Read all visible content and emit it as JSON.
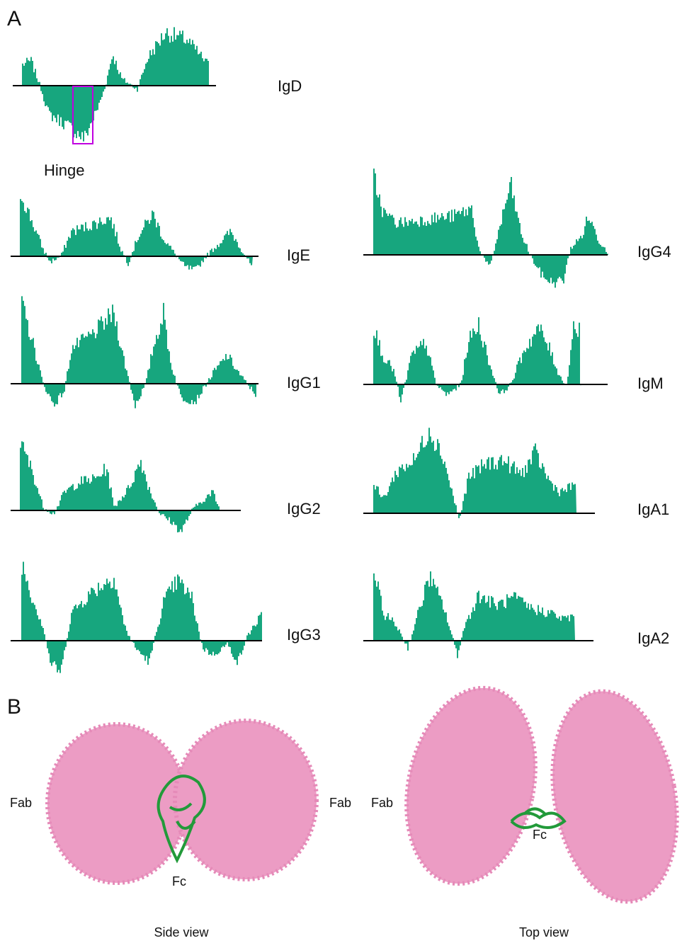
{
  "panel_a": {
    "label": "A",
    "hinge": "Hinge",
    "plots": [
      {
        "label": "IgD"
      },
      {
        "label": "IgE"
      },
      {
        "label": "IgG1"
      },
      {
        "label": "IgG2"
      },
      {
        "label": "IgG3"
      },
      {
        "label": "IgG4"
      },
      {
        "label": "IgM"
      },
      {
        "label": "IgA1"
      },
      {
        "label": "IgA2"
      }
    ]
  },
  "panel_b": {
    "label": "B",
    "views": [
      {
        "caption": "Side view",
        "fab_left": "Fab",
        "fab_right": "Fab",
        "fc": "Fc"
      },
      {
        "caption": "Top view",
        "fab_left": "Fab",
        "fc": "Fc"
      }
    ]
  }
}
